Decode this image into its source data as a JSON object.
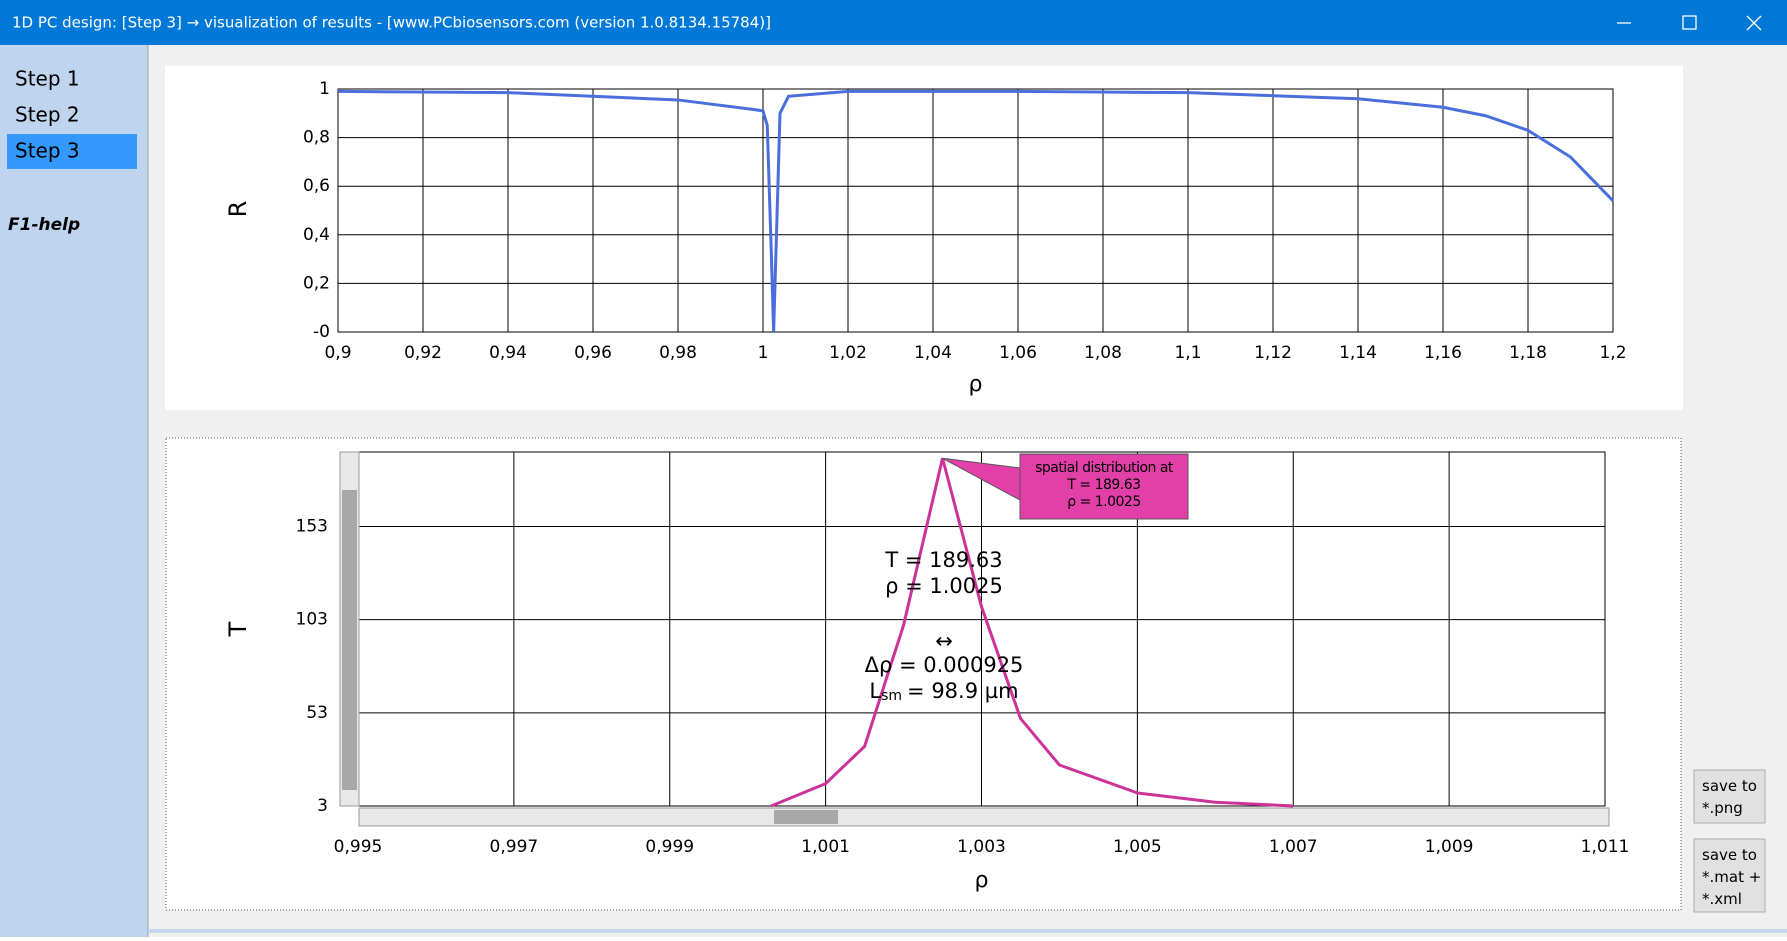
{
  "window": {
    "title": "1D PC design: [Step 3] → visualization of results - [www.PCbiosensors.com (version 1.0.8134.15784)]"
  },
  "sidebar": {
    "items": [
      "Step 1",
      "Step 2",
      "Step 3"
    ],
    "selected": 2,
    "help": "F1-help"
  },
  "buttons": [
    "save to *.png",
    "save to *.mat + *.xml"
  ],
  "chart_data": [
    {
      "type": "line",
      "xlabel": "ρ",
      "ylabel": "R",
      "color": "#4a6fdc",
      "grid": true,
      "x": [
        0.9,
        0.94,
        0.98,
        0.998,
        1.0,
        1.001,
        1.002,
        1.0025,
        1.003,
        1.004,
        1.006,
        1.02,
        1.06,
        1.1,
        1.14,
        1.16,
        1.17,
        1.18,
        1.19,
        1.2
      ],
      "values": [
        0.99,
        0.985,
        0.955,
        0.915,
        0.91,
        0.85,
        0.3,
        0,
        0.3,
        0.9,
        0.97,
        0.99,
        0.99,
        0.985,
        0.96,
        0.925,
        0.89,
        0.83,
        0.72,
        0.54
      ],
      "xlim": [
        0.9,
        1.2
      ],
      "xticks": [
        {
          "value": 0.9,
          "label": "0,9"
        },
        {
          "value": 0.92,
          "label": "0,92"
        },
        {
          "value": 0.94,
          "label": "0,94"
        },
        {
          "value": 0.96,
          "label": "0,96"
        },
        {
          "value": 0.98,
          "label": "0,98"
        },
        1,
        {
          "value": 1.02,
          "label": "1,02"
        },
        {
          "value": 1.04,
          "label": "1,04"
        },
        {
          "value": 1.06,
          "label": "1,06"
        },
        {
          "value": 1.08,
          "label": "1,08"
        },
        {
          "value": 1.1,
          "label": "1,1"
        },
        {
          "value": 1.12,
          "label": "1,12"
        },
        {
          "value": 1.14,
          "label": "1,14"
        },
        {
          "value": 1.16,
          "label": "1,16"
        },
        {
          "value": 1.18,
          "label": "1,18"
        },
        {
          "value": 1.2,
          "label": "1,2"
        }
      ],
      "ylim": [
        0,
        1
      ],
      "yticks": [
        {
          "value": 0,
          "label": "-0"
        },
        {
          "value": 0.2,
          "label": "0,2"
        },
        {
          "value": 0.4,
          "label": "0,4"
        },
        {
          "value": 0.6,
          "label": "0,6"
        },
        {
          "value": 0.8,
          "label": "0,8"
        },
        1
      ]
    },
    {
      "type": "line",
      "xlabel": "ρ",
      "ylabel": "T",
      "color": "#cc3399",
      "grid": true,
      "x": [
        1.0003,
        1.001,
        1.0015,
        1.002,
        1.0025,
        1.003,
        1.0035,
        1.004,
        1.005,
        1.006,
        1.007
      ],
      "values": [
        3,
        15,
        35,
        100,
        189.63,
        110,
        50,
        25,
        10,
        5,
        3
      ],
      "xlim": [
        0.995,
        1.011
      ],
      "xticks": [
        {
          "value": 0.995,
          "label": "0,995"
        },
        {
          "value": 0.997,
          "label": "0,997"
        },
        {
          "value": 0.999,
          "label": "0,999"
        },
        {
          "value": 1.001,
          "label": "1,001"
        },
        {
          "value": 1.003,
          "label": "1,003"
        },
        {
          "value": 1.005,
          "label": "1,005"
        },
        {
          "value": 1.007,
          "label": "1,007"
        },
        {
          "value": 1.009,
          "label": "1,009"
        },
        {
          "value": 1.011,
          "label": "1,011"
        }
      ],
      "ylim": [
        3,
        193
      ],
      "yticks": [
        3,
        53,
        103,
        153
      ],
      "callout": {
        "lines": [
          "spatial distribution at",
          "T = 189.63",
          "ρ = 1.0025"
        ]
      },
      "readout": {
        "t": "T = 189.63",
        "rho": "ρ = 1.0025",
        "arrow": "↔",
        "delta": "Δρ = 0.000925",
        "l": "L",
        "l_sub": "sm",
        "l_rest": "= 98.9 µm"
      }
    }
  ]
}
